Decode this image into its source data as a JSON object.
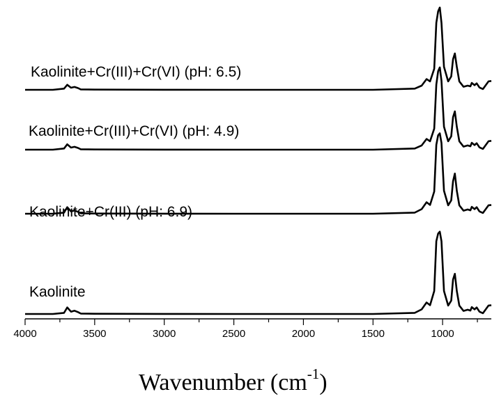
{
  "chart_data": {
    "type": "line",
    "title": "",
    "xlabel": "Wavenumber (cm",
    "xlabel_sup": "-1",
    "xlabel_tail": ")",
    "ylabel": "",
    "xlim": [
      4000,
      650
    ],
    "x_reversed": true,
    "xticks": [
      4000,
      3500,
      3000,
      2500,
      2000,
      1500,
      1000
    ],
    "xtick_labels": [
      "4000",
      "3500",
      "3000",
      "2500",
      "2000",
      "1500",
      "1000"
    ],
    "y_axis_visible": false,
    "grid": false,
    "legend": "none",
    "line_color": "#000000",
    "series": [
      {
        "name": "Kaolinite+Cr(III)+Cr(VI) (pH: 6.5)",
        "baseline": 0,
        "x": [
          4000,
          3800,
          3720,
          3697,
          3670,
          3645,
          3620,
          3600,
          3500,
          3000,
          2500,
          2000,
          1500,
          1200,
          1150,
          1115,
          1090,
          1060,
          1045,
          1032,
          1020,
          1008,
          990,
          960,
          938,
          925,
          912,
          898,
          880,
          850,
          820,
          800,
          790,
          770,
          755,
          735,
          710,
          690,
          670,
          650
        ],
        "y": [
          0,
          0,
          0.3,
          1.3,
          0.55,
          0.75,
          0.45,
          0.1,
          0.05,
          0.02,
          0,
          0,
          0,
          0.3,
          1.1,
          2.8,
          2.2,
          5.5,
          17.5,
          20.5,
          21.5,
          17.5,
          6,
          2.2,
          3.5,
          8,
          9.5,
          6,
          2.2,
          0.8,
          1.1,
          0.9,
          1.8,
          1.2,
          1.7,
          0.6,
          0.2,
          1.2,
          2.2,
          2.3
        ]
      },
      {
        "name": "Kaolinite+Cr(III)+Cr(VI) (pH: 4.9)",
        "baseline": 0,
        "x": [
          4000,
          3800,
          3720,
          3697,
          3670,
          3645,
          3620,
          3600,
          3500,
          3000,
          2500,
          2000,
          1500,
          1200,
          1150,
          1115,
          1090,
          1060,
          1045,
          1032,
          1020,
          1008,
          990,
          960,
          938,
          925,
          912,
          898,
          880,
          850,
          820,
          800,
          790,
          770,
          755,
          735,
          710,
          690,
          670,
          650
        ],
        "y": [
          0,
          0,
          0.3,
          1.4,
          0.55,
          0.75,
          0.45,
          0.1,
          0.05,
          0.02,
          0,
          0,
          0,
          0.3,
          1.1,
          2.8,
          2.2,
          5.5,
          17,
          20.5,
          21.5,
          18,
          6,
          2.2,
          3.5,
          8.5,
          10,
          6,
          2.2,
          0.8,
          1.1,
          0.9,
          1.8,
          1.2,
          1.7,
          0.6,
          0.2,
          1.2,
          2.2,
          2.3
        ]
      },
      {
        "name": "Kaolinite+Cr(III) (pH: 6.9)",
        "baseline": 0,
        "x": [
          4000,
          3800,
          3720,
          3697,
          3670,
          3645,
          3620,
          3600,
          3500,
          3000,
          2500,
          2000,
          1500,
          1200,
          1150,
          1115,
          1090,
          1060,
          1045,
          1032,
          1020,
          1008,
          990,
          960,
          938,
          925,
          912,
          898,
          880,
          850,
          820,
          800,
          790,
          770,
          755,
          735,
          710,
          690,
          670,
          650
        ],
        "y": [
          0,
          0,
          0.3,
          1.7,
          0.6,
          0.85,
          0.5,
          0.1,
          0.05,
          0.02,
          0,
          0,
          0,
          0.3,
          1.2,
          3,
          2.3,
          5.8,
          18,
          20.5,
          21,
          18.5,
          6,
          2.2,
          3.5,
          8.5,
          10.5,
          6,
          2.2,
          0.8,
          1.1,
          0.9,
          1.8,
          1.2,
          1.7,
          0.6,
          0.2,
          1.2,
          2.2,
          2.3
        ]
      },
      {
        "name": "Kaolinite",
        "baseline": 0,
        "x": [
          4000,
          3800,
          3720,
          3697,
          3670,
          3645,
          3620,
          3600,
          3500,
          3000,
          2500,
          2000,
          1500,
          1200,
          1150,
          1115,
          1090,
          1060,
          1045,
          1032,
          1020,
          1008,
          990,
          960,
          938,
          925,
          912,
          898,
          880,
          850,
          820,
          800,
          790,
          770,
          755,
          735,
          710,
          690,
          670,
          650
        ],
        "y": [
          0,
          0,
          0.3,
          1.7,
          0.6,
          0.85,
          0.5,
          0.1,
          0.05,
          0.02,
          0,
          0,
          0,
          0.3,
          1.2,
          3,
          2.3,
          6,
          19,
          21,
          21.5,
          19,
          6,
          2.2,
          3.5,
          9,
          10.5,
          6,
          2.2,
          0.8,
          1.1,
          0.9,
          1.8,
          1.2,
          1.7,
          0.6,
          0.2,
          1.2,
          2.2,
          2.3
        ]
      }
    ]
  }
}
